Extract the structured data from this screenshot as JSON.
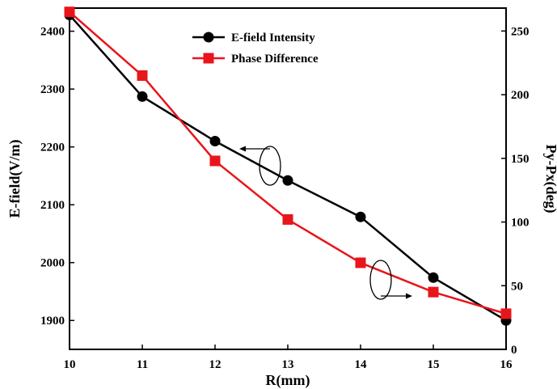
{
  "chart_data": {
    "type": "line",
    "xlabel": "R(mm)",
    "ylabel_left": "E-field(V/m)",
    "ylabel_right": "Py-Px(deg)",
    "x": [
      10,
      11,
      12,
      13,
      14,
      15,
      16
    ],
    "x_ticks": [
      "10",
      "11",
      "12",
      "13",
      "14",
      "15",
      "16"
    ],
    "xlim": [
      10,
      16
    ],
    "ylim_left": [
      1850,
      2440
    ],
    "ylim_right": [
      0,
      268
    ],
    "y_ticks_left": [
      "1900",
      "2000",
      "2100",
      "2200",
      "2300",
      "2400"
    ],
    "y_ticks_right": [
      "0",
      "50",
      "100",
      "150",
      "200",
      "250"
    ],
    "legend_position": "top-center",
    "grid": false,
    "series": [
      {
        "name": "E-field Intensity",
        "axis": "left",
        "color": "#000000",
        "marker": "circle",
        "values": [
          2428,
          2287,
          2210,
          2142,
          2079,
          1974,
          1900
        ]
      },
      {
        "name": "Phase Difference",
        "axis": "right",
        "color": "#e8151b",
        "marker": "square",
        "values": [
          265,
          215,
          148,
          102,
          68,
          45,
          28
        ]
      }
    ]
  }
}
